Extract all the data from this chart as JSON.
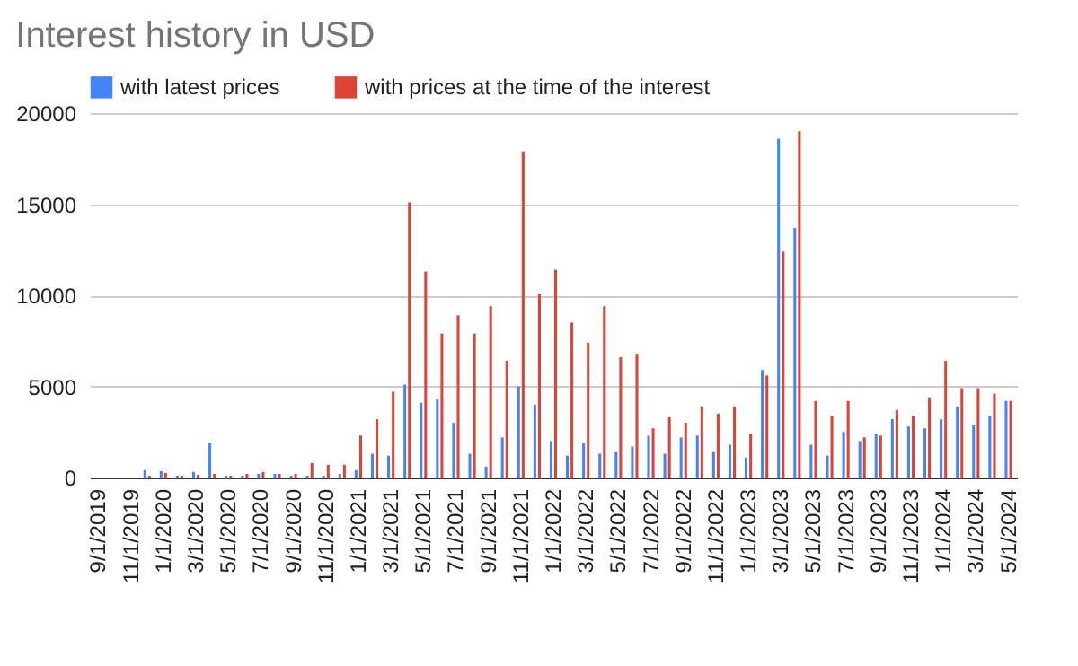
{
  "chart_data": {
    "type": "bar",
    "title": "Interest history in USD",
    "categories": [
      "9/1/2019",
      null,
      "11/1/2019",
      null,
      "1/1/2020",
      null,
      "3/1/2020",
      null,
      "5/1/2020",
      null,
      "7/1/2020",
      null,
      "9/1/2020",
      null,
      "11/1/2020",
      null,
      "1/1/2021",
      null,
      "3/1/2021",
      null,
      "5/1/2021",
      null,
      "7/1/2021",
      null,
      "9/1/2021",
      null,
      "11/1/2021",
      null,
      "1/1/2022",
      null,
      "3/1/2022",
      null,
      "5/1/2022",
      null,
      "7/1/2022",
      null,
      "9/1/2022",
      null,
      "11/1/2022",
      null,
      "1/1/2023",
      null,
      "3/1/2023",
      null,
      "5/1/2023",
      null,
      "7/1/2023",
      null,
      "9/1/2023",
      null,
      "11/1/2023",
      null,
      "1/1/2024",
      null,
      "3/1/2024",
      null,
      "5/1/2024"
    ],
    "series": [
      {
        "name": "with latest prices",
        "color": "#4285f4",
        "values": [
          0,
          0,
          0,
          400,
          350,
          100,
          300,
          1900,
          100,
          100,
          200,
          200,
          100,
          100,
          100,
          200,
          400,
          1300,
          1200,
          5100,
          4100,
          4300,
          3000,
          1300,
          600,
          2200,
          5000,
          4000,
          2000,
          1200,
          1900,
          1300,
          1400,
          1700,
          2300,
          1300,
          2200,
          2300,
          1400,
          1800,
          1100,
          5900,
          18600,
          13700,
          1800,
          1200,
          2500,
          2000,
          2400,
          3200,
          2800,
          2700,
          3200,
          3900,
          2900,
          3400,
          4200
        ]
      },
      {
        "name": "with prices at the time of the interest",
        "color": "#db4437",
        "values": [
          0,
          0,
          0,
          100,
          250,
          100,
          150,
          200,
          100,
          200,
          300,
          200,
          200,
          800,
          700,
          700,
          2300,
          3200,
          4700,
          15100,
          11300,
          7900,
          8900,
          7900,
          9400,
          6400,
          17900,
          10100,
          11400,
          8500,
          7400,
          9400,
          6600,
          6800,
          2700,
          3300,
          3000,
          3900,
          3500,
          3900,
          2400,
          5600,
          12400,
          19000,
          4200,
          3400,
          4200,
          2200,
          2300,
          3700,
          3400,
          4400,
          6400,
          4900,
          4900,
          4600,
          4200
        ]
      }
    ],
    "ylim": [
      0,
      20000
    ],
    "yticks": [
      0,
      5000,
      10000,
      15000,
      20000
    ],
    "grid": "y",
    "legend": "top"
  }
}
